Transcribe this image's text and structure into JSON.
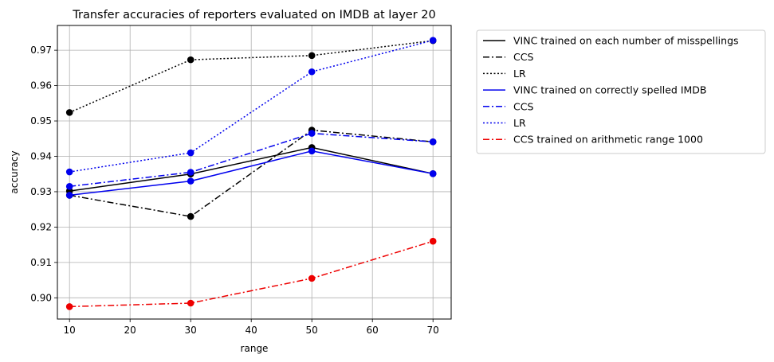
{
  "chart_data": {
    "type": "line",
    "title": "Transfer accuracies of reporters evaluated on IMDB at layer 20",
    "xlabel": "range",
    "ylabel": "accuracy",
    "xlim": [
      8,
      73
    ],
    "ylim": [
      0.894,
      0.977
    ],
    "xticks": [
      10,
      20,
      30,
      40,
      50,
      60,
      70
    ],
    "yticks": [
      0.9,
      0.91,
      0.92,
      0.93,
      0.94,
      0.95,
      0.96,
      0.97
    ],
    "grid": true,
    "legend_position": "outside-right",
    "x": [
      10,
      30,
      50,
      70
    ],
    "series": [
      {
        "name": "VINC trained on each number of misspellings",
        "color": "#000000",
        "style": "solid",
        "values": [
          0.9302,
          0.935,
          0.9425,
          0.9351
        ]
      },
      {
        "name": "CCS",
        "color": "#000000",
        "style": "dashdot",
        "values": [
          0.929,
          0.923,
          0.9474,
          0.9441
        ]
      },
      {
        "name": "LR",
        "color": "#000000",
        "style": "dotted",
        "values": [
          0.9524,
          0.9673,
          0.9685,
          0.9727
        ]
      },
      {
        "name": "VINC trained on correctly spelled IMDB",
        "color": "#0000ee",
        "style": "solid",
        "values": [
          0.929,
          0.933,
          0.9415,
          0.9351
        ]
      },
      {
        "name": "CCS",
        "color": "#0000ee",
        "style": "dashdot",
        "values": [
          0.9315,
          0.9355,
          0.9465,
          0.9441
        ]
      },
      {
        "name": "LR",
        "color": "#0000ee",
        "style": "dotted",
        "values": [
          0.9356,
          0.941,
          0.9639,
          0.9728
        ]
      },
      {
        "name": "CCS trained on arithmetic range 1000",
        "color": "#ee0000",
        "style": "dashdot",
        "values": [
          0.8975,
          0.8985,
          0.9055,
          0.916
        ]
      }
    ]
  }
}
